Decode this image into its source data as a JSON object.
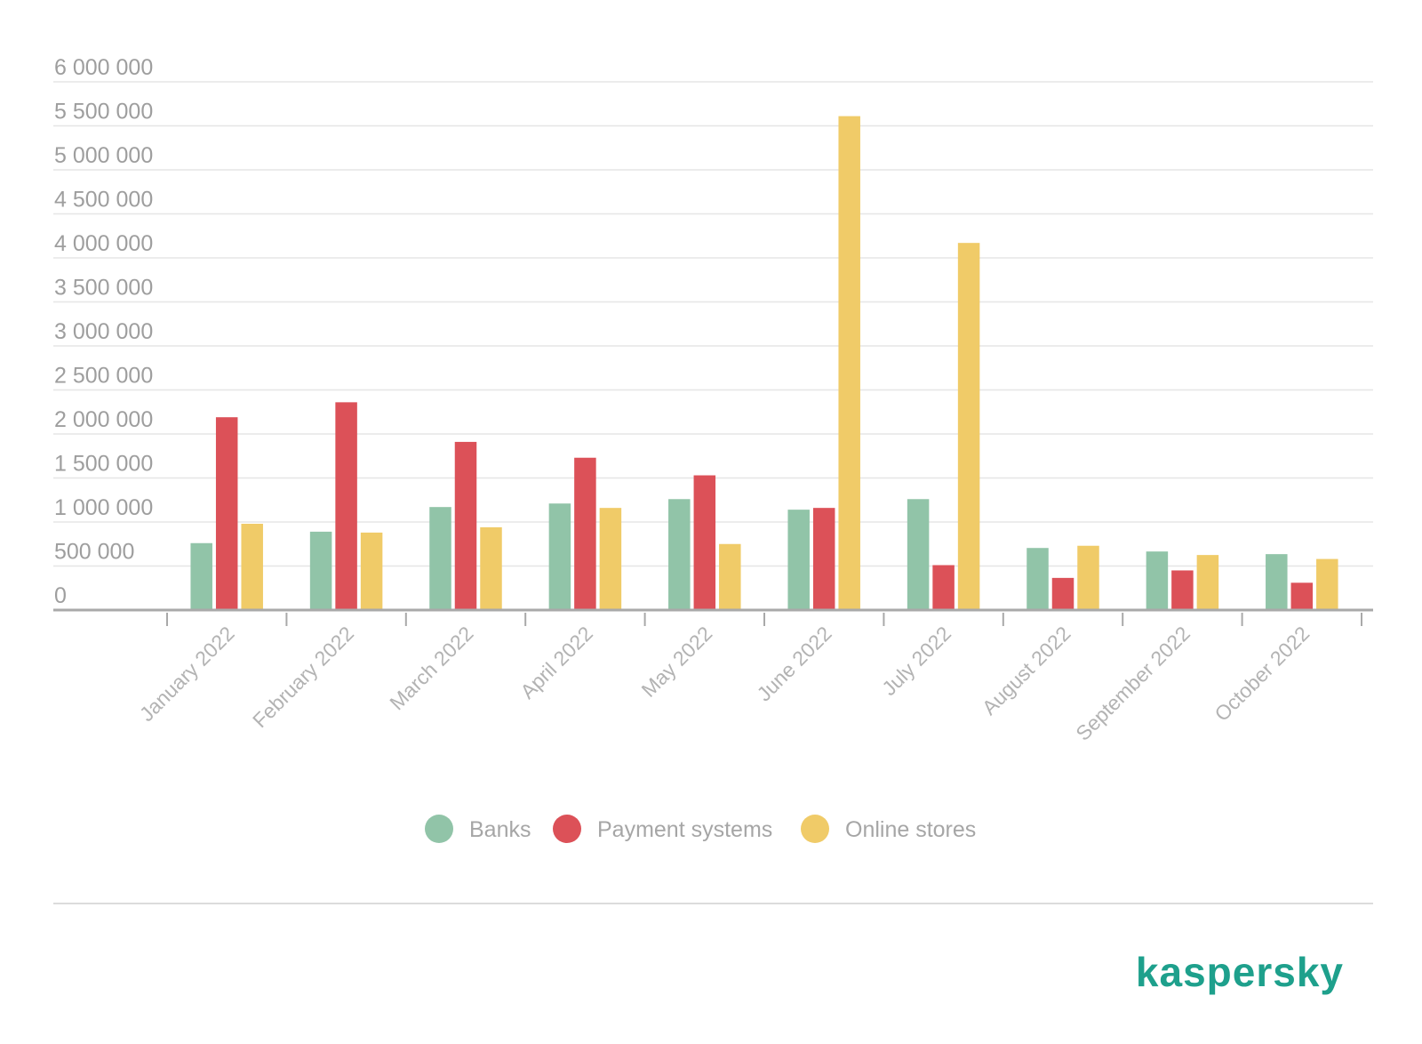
{
  "chart_data": {
    "type": "bar",
    "categories": [
      "January 2022",
      "February 2022",
      "March 2022",
      "April 2022",
      "May 2022",
      "June 2022",
      "July 2022",
      "August 2022",
      "September 2022",
      "October 2022"
    ],
    "series": [
      {
        "name": "Banks",
        "color": "#91c4a8",
        "values": [
          760000,
          890000,
          1170000,
          1210000,
          1260000,
          1140000,
          1260000,
          705000,
          665000,
          635000
        ]
      },
      {
        "name": "Payment systems",
        "color": "#dc5158",
        "values": [
          2190000,
          2360000,
          1910000,
          1730000,
          1530000,
          1160000,
          510000,
          365000,
          450000,
          310000
        ]
      },
      {
        "name": "Online stores",
        "color": "#f0cb68",
        "values": [
          980000,
          880000,
          940000,
          1160000,
          750000,
          5610000,
          4170000,
          730000,
          625000,
          580000
        ]
      }
    ],
    "y_ticks": [
      "0",
      "500 000",
      "1 000 000",
      "1 500 000",
      "2 000 000",
      "2 500 000",
      "3 000 000",
      "3 500 000",
      "4 000 000",
      "4 500 000",
      "5 000 000",
      "5 500 000",
      "6 000 000"
    ],
    "ylim": [
      0,
      6000000
    ],
    "grid": true,
    "legend_position": "bottom-center",
    "title": "",
    "xlabel": "",
    "ylabel": ""
  },
  "branding": {
    "logo_text": "kaspersky",
    "logo_color": "#1ea08c"
  }
}
